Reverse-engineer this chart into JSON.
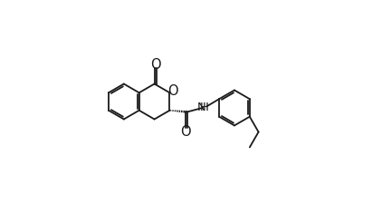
{
  "background_color": "#ffffff",
  "line_color": "#1a1a1a",
  "lw": 1.3,
  "fig_width": 4.22,
  "fig_height": 2.26,
  "dpi": 100,
  "r": 0.088
}
